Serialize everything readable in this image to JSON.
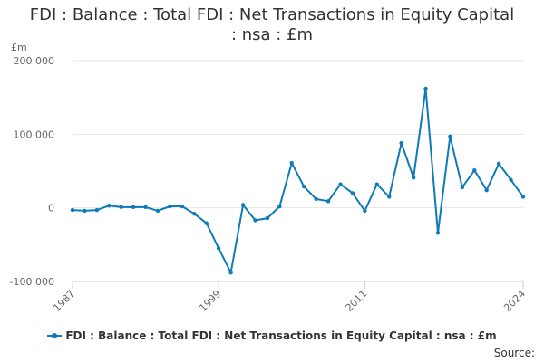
{
  "header": {
    "title_line1": "FDI : Balance : Total FDI : Net Transactions in Equity Capital",
    "title_line2": ": nsa : £m"
  },
  "footer": {
    "source_label": "Source:"
  },
  "colors": {
    "series": "#0f7ab8",
    "grid": "#e6e6e6",
    "axis": "#cccccc",
    "text": "#666666"
  },
  "chart_data": {
    "type": "line",
    "title": "FDI : Balance : Total FDI : Net Transactions in Equity Capital : nsa : £m",
    "ylabel": "£m",
    "xlabel": "",
    "ylim": [
      -100000,
      200000
    ],
    "yticks": [
      -100000,
      0,
      100000,
      200000
    ],
    "ytick_labels": [
      "-100 000",
      "0",
      "100 000",
      "200 000"
    ],
    "xlim": [
      1987,
      2024
    ],
    "xticks": [
      1987,
      1999,
      2011,
      2024
    ],
    "xtick_labels": [
      "1987",
      "1999",
      "2011",
      "2024"
    ],
    "grid": true,
    "legend": "bottom",
    "series": [
      {
        "name": "FDI : Balance : Total FDI : Net Transactions in Equity Capital : nsa : £m",
        "x": [
          1987,
          1988,
          1989,
          1990,
          1991,
          1992,
          1993,
          1994,
          1995,
          1996,
          1997,
          1998,
          1999,
          2000,
          2001,
          2002,
          2003,
          2004,
          2005,
          2006,
          2007,
          2008,
          2009,
          2010,
          2011,
          2012,
          2013,
          2014,
          2015,
          2016,
          2017,
          2018,
          2019,
          2020,
          2021,
          2022,
          2023,
          2024
        ],
        "values": [
          -3000,
          -4000,
          -3000,
          3000,
          1000,
          1000,
          1000,
          -4000,
          2000,
          2000,
          -8000,
          -21000,
          -55000,
          -88000,
          4000,
          -17000,
          -14000,
          2000,
          61000,
          29000,
          12000,
          9000,
          32000,
          20000,
          -4000,
          32000,
          15000,
          88000,
          41000,
          162000,
          -34000,
          97000,
          28000,
          51000,
          24000,
          60000,
          38000,
          15000
        ]
      }
    ]
  }
}
